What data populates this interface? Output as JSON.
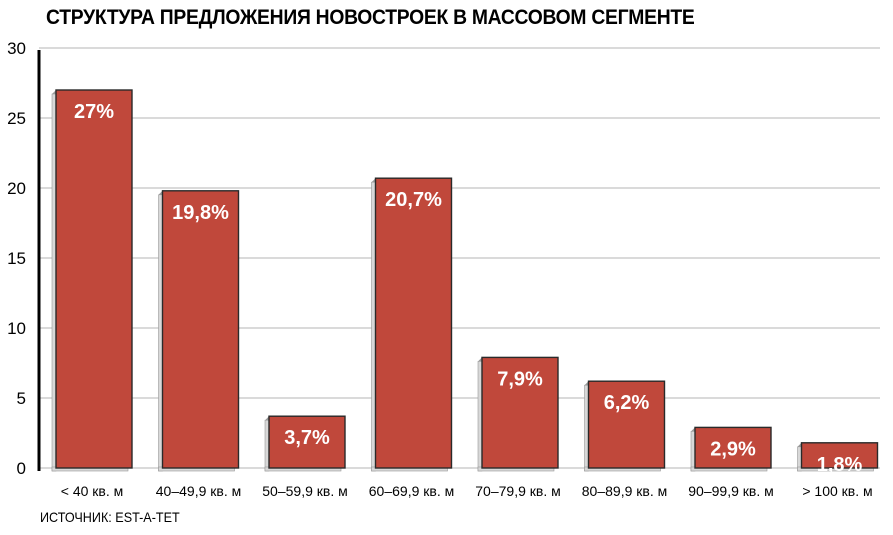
{
  "chart_data": {
    "type": "bar",
    "title": "СТРУКТУРА ПРЕДЛОЖЕНИЯ НОВОСТРОЕК В МАССОВОМ СЕГМЕНТЕ",
    "source": "ИСТОЧНИК: EST-A-TET",
    "categories": [
      "< 40 кв. м",
      "40–49,9 кв. м",
      "50–59,9 кв. м",
      "60–69,9 кв. м",
      "70–79,9 кв. м",
      "80–89,9 кв. м",
      "90–99,9 кв. м",
      "> 100 кв. м"
    ],
    "values": [
      27,
      19.8,
      3.7,
      20.7,
      7.9,
      6.2,
      2.9,
      1.8
    ],
    "data_labels": [
      "27%",
      "19,8%",
      "3,7%",
      "20,7%",
      "7,9%",
      "6,2%",
      "2,9%",
      "1,8%"
    ],
    "y_ticks": [
      "0",
      "5",
      "10",
      "15",
      "20",
      "25",
      "30"
    ],
    "ylim": [
      0,
      30
    ],
    "grid": true,
    "legend": "none",
    "bar_color": "#c0483b",
    "bar_shadow_color": "#d8d8d8",
    "grid_color": "#b5b5b5",
    "axis_color": "#000000"
  }
}
